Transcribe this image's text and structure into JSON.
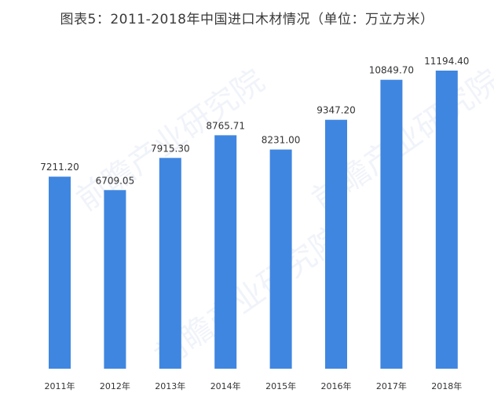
{
  "chart_data": {
    "type": "bar",
    "title": "图表5：2011-2018年中国进口木材情况（单位：万立方米）",
    "categories": [
      "2011年",
      "2012年",
      "2013年",
      "2014年",
      "2015年",
      "2016年",
      "2017年",
      "2018年"
    ],
    "values": [
      7211.2,
      6709.05,
      7915.3,
      8765.71,
      8231.0,
      9347.2,
      10849.7,
      11194.4
    ],
    "value_labels": [
      "7211.20",
      "6709.05",
      "7915.30",
      "8765.71",
      "8231.00",
      "9347.20",
      "10849.70",
      "11194.40"
    ],
    "xlabel": "",
    "ylabel": "",
    "ylim": [
      0,
      11194.4
    ],
    "grid": false,
    "legend": "none",
    "bar_color": "#3f86e0"
  },
  "watermark": {
    "text": "前瞻产业研究院"
  }
}
